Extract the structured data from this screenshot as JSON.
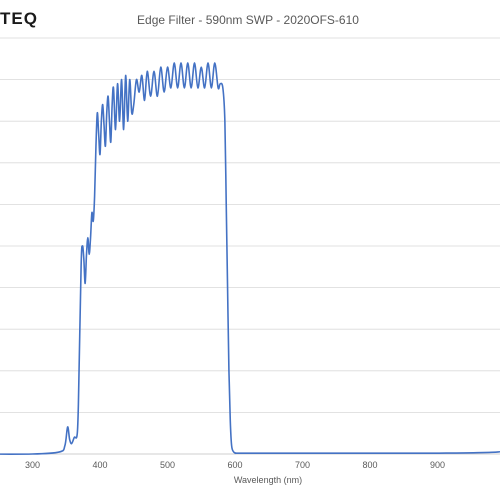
{
  "logo": {
    "text": "TEQ"
  },
  "chart_data": {
    "type": "line",
    "title": "Edge Filter - 590nm SWP - 2020OFS-610",
    "xlabel": "Wavelength (nm)",
    "ylabel": "",
    "xlim": [
      200,
      1000
    ],
    "ylim": [
      0,
      100
    ],
    "x_ticks": [
      300,
      400,
      500,
      600,
      700,
      800,
      900
    ],
    "y_gridlines": [
      0,
      10,
      20,
      30,
      40,
      50,
      60,
      70,
      80,
      90,
      100
    ],
    "grid": true,
    "line_color": "#4472c4",
    "series": [
      {
        "x": [
          200,
          300,
          340,
          348,
          352,
          355,
          358,
          362,
          366,
          368,
          372,
          374,
          376,
          378,
          380,
          382,
          384,
          386,
          388,
          390,
          392,
          394,
          396,
          398,
          400,
          402,
          404,
          406,
          408,
          410,
          412,
          414,
          416,
          418,
          420,
          423,
          426,
          429,
          432,
          435,
          438,
          441,
          444,
          447,
          450,
          454,
          458,
          462,
          466,
          470,
          475,
          480,
          485,
          490,
          495,
          500,
          505,
          510,
          515,
          520,
          525,
          530,
          535,
          540,
          545,
          550,
          555,
          560,
          565,
          570,
          575,
          578,
          582,
          585,
          587,
          589,
          591,
          593,
          595,
          598,
          602,
          610,
          700,
          800,
          900,
          990,
          995,
          1000
        ],
        "y": [
          0,
          0,
          0.5,
          2,
          6.5,
          3.5,
          2.5,
          4,
          4.5,
          12,
          45,
          50,
          47,
          41,
          48,
          52,
          48,
          52,
          58,
          56,
          62,
          74,
          82,
          77,
          72,
          80,
          84,
          79,
          74,
          82,
          86,
          80,
          75,
          84,
          88,
          78,
          89,
          80,
          90,
          78,
          91,
          80,
          90,
          82,
          84,
          90,
          87,
          91,
          85,
          92,
          86,
          92,
          86,
          93,
          87,
          93,
          88,
          94,
          88,
          94,
          88,
          94,
          88,
          94,
          88,
          93,
          88,
          94,
          88,
          94,
          88,
          89,
          88,
          80,
          60,
          40,
          20,
          8,
          2,
          0.5,
          0.2,
          0.2,
          0.2,
          0.2,
          0.2,
          0.5,
          1.5,
          3
        ]
      }
    ]
  }
}
